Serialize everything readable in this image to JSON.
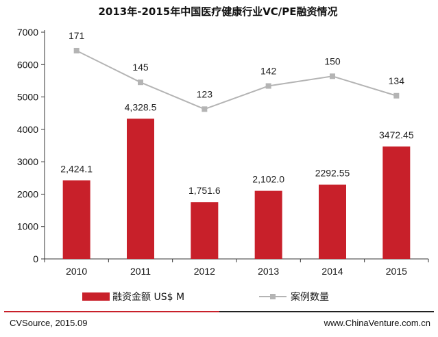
{
  "chart_data": {
    "type": "bar",
    "title": "2013年-2015年中国医疗健康行业VC/PE融资情况",
    "categories": [
      "2010",
      "2011",
      "2012",
      "2013",
      "2014",
      "2015"
    ],
    "ylim": [
      0,
      7000
    ],
    "yticks": [
      0,
      1000,
      2000,
      3000,
      4000,
      5000,
      6000,
      7000
    ],
    "grid": false,
    "legend_position": "bottom",
    "series": [
      {
        "name": "融资金额 US$ M",
        "type": "bar",
        "color": "#C8202A",
        "values": [
          2424.1,
          4328.5,
          1751.6,
          2102.0,
          2292.55,
          3472.45
        ],
        "labels": [
          "2,424.1",
          "4,328.5",
          "1,751.6",
          "2,102.0",
          "2292.55",
          "3472.45"
        ]
      },
      {
        "name": "案例数量",
        "type": "line",
        "color": "#B4B4B4",
        "values": [
          171,
          145,
          123,
          142,
          150,
          134
        ],
        "labels": [
          "171",
          "145",
          "123",
          "142",
          "150",
          "134"
        ]
      }
    ]
  },
  "footer": {
    "source": "CVSource, 2015.09",
    "website": "www.ChinaVenture.com.cn"
  },
  "colors": {
    "footer_rule_left": "#C8202A",
    "footer_rule_right": "#222222"
  }
}
